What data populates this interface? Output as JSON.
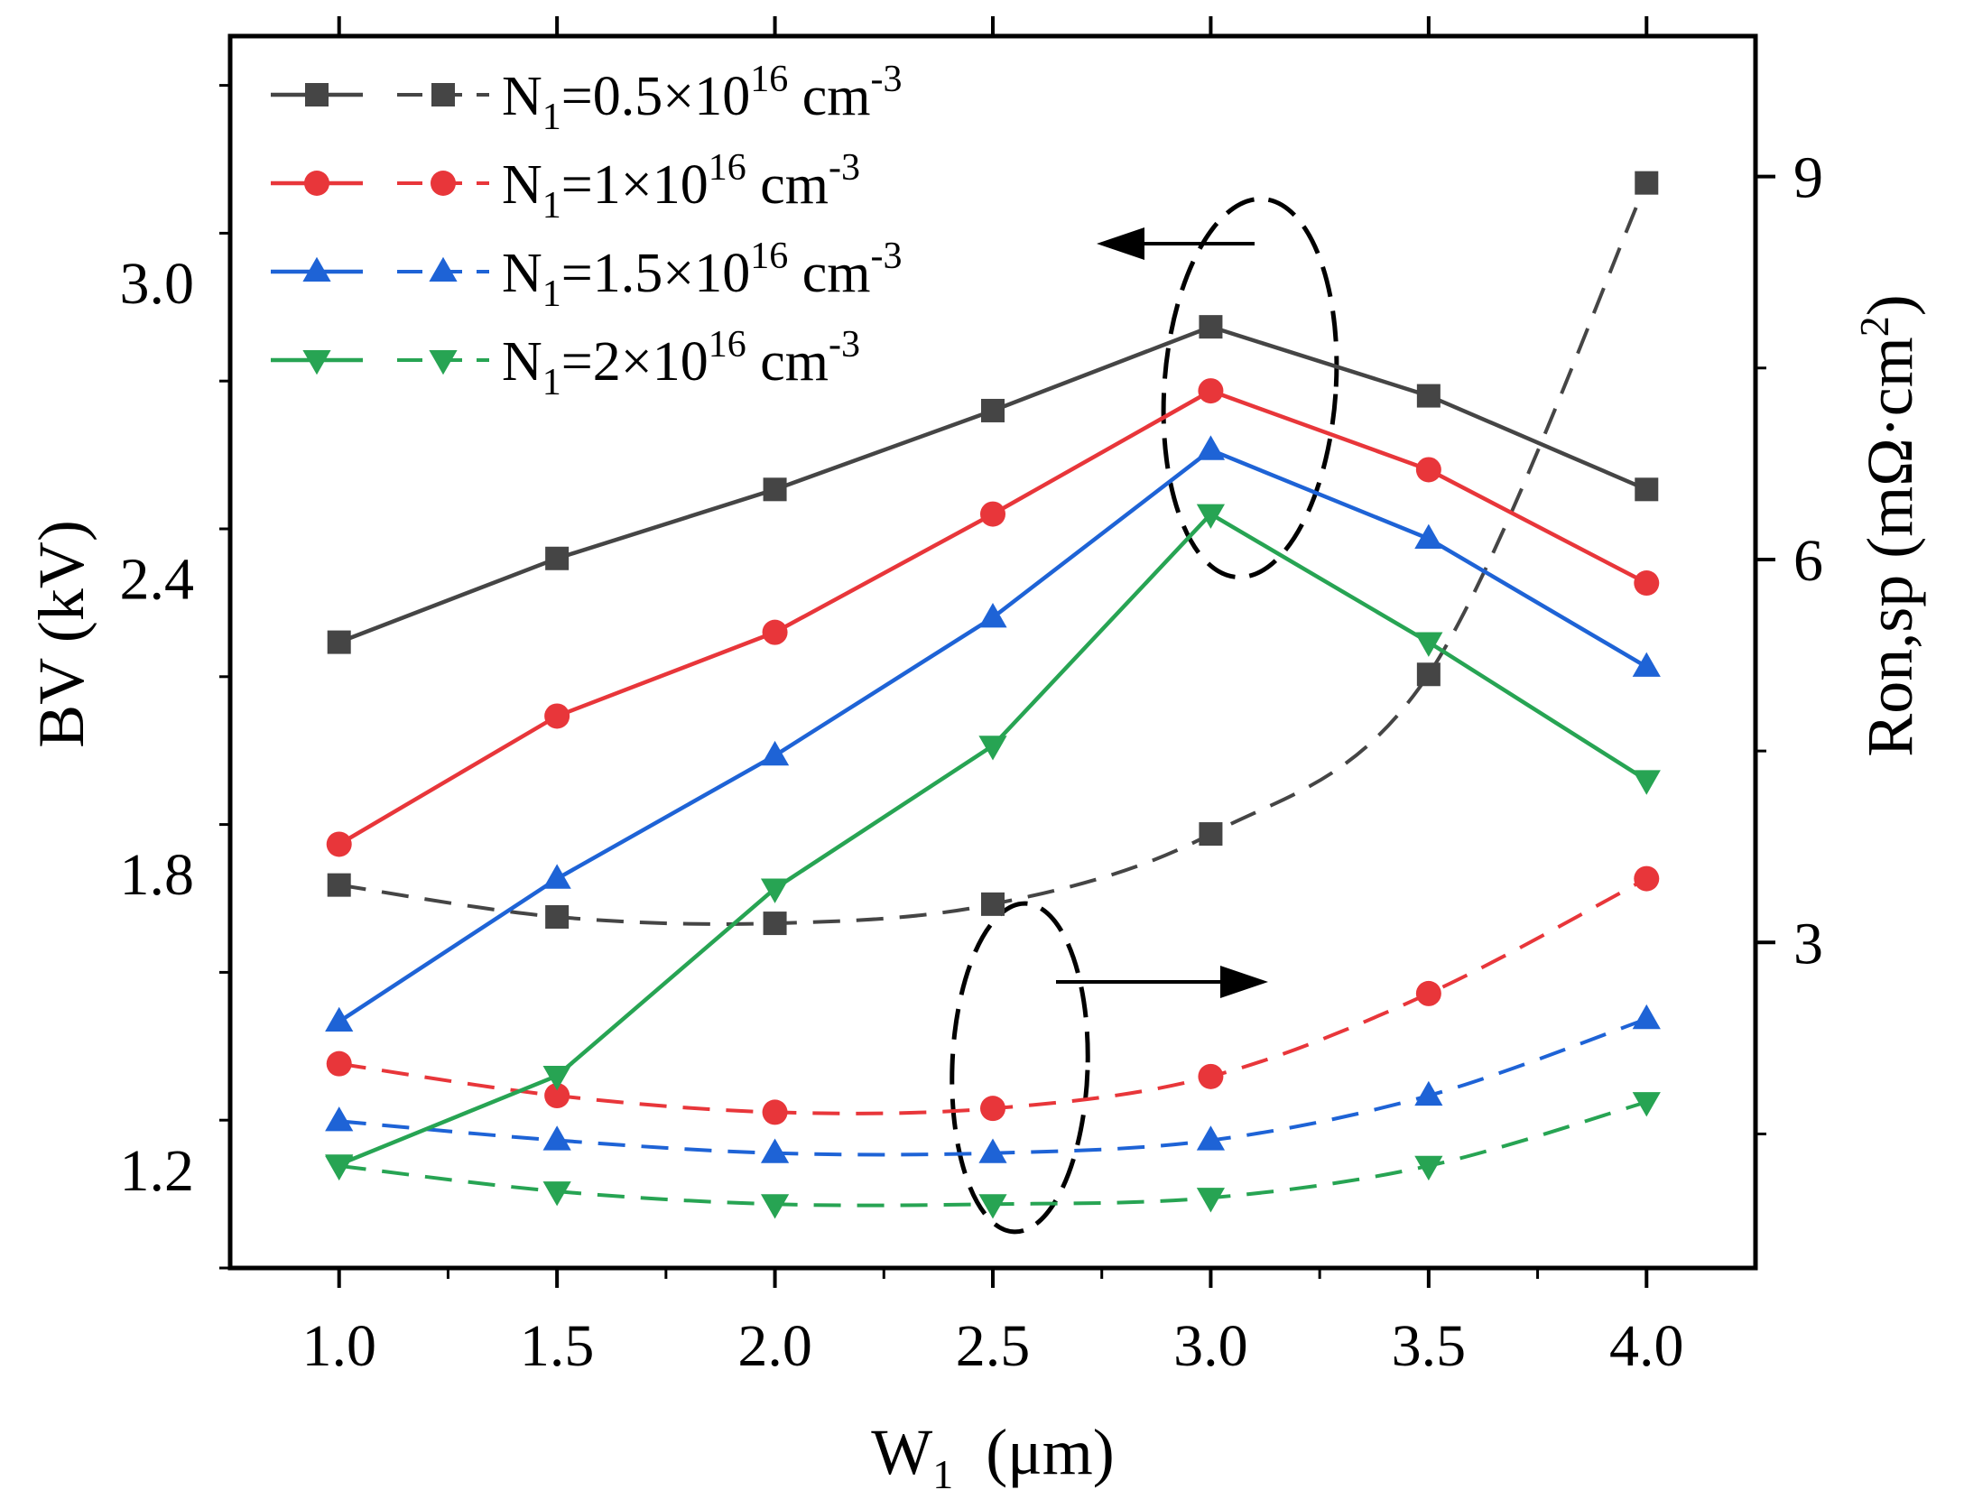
{
  "chart_data": {
    "type": "line",
    "x": [
      1.0,
      1.5,
      2.0,
      2.5,
      3.0,
      3.5,
      4.0
    ],
    "x_tick_labels": [
      "1.0",
      "1.5",
      "2.0",
      "2.5",
      "3.0",
      "3.5",
      "4.0"
    ],
    "xlim": [
      0.75,
      4.25
    ],
    "xlabel": {
      "main": "W",
      "sub": "1",
      "unit": "(μm)"
    },
    "y_left": {
      "label": "BV  (kV)",
      "lim": [
        1.0,
        3.5
      ],
      "ticks": [
        1.2,
        1.8,
        2.4,
        3.0
      ],
      "tick_labels": [
        "1.2",
        "1.8",
        "2.4",
        "3.0"
      ]
    },
    "y_right": {
      "label_main": "Ron,sp  (mΩ·cm",
      "label_sup": "2",
      "label_close": ")",
      "lim": [
        0.45,
        10.1
      ],
      "ticks": [
        3,
        6,
        9
      ],
      "tick_labels": [
        "3",
        "6",
        "9"
      ]
    },
    "series": [
      {
        "name": "N1=0.5×10^16 cm^-3",
        "legend": {
          "prefix": "N",
          "sub": "1",
          "coef": "=0.5×10",
          "exp": "16",
          "unit": " cm",
          "unit_exp": "-3"
        },
        "color": "#454545",
        "marker": "square",
        "bv": [
          2.27,
          2.44,
          2.58,
          2.74,
          2.91,
          2.77,
          2.58
        ],
        "ron": [
          3.45,
          3.2,
          3.15,
          3.3,
          3.85,
          5.1,
          8.95
        ]
      },
      {
        "name": "N1=1×10^16 cm^-3",
        "legend": {
          "prefix": "N",
          "sub": "1",
          "coef": "=1×10",
          "exp": "16",
          "unit": " cm",
          "unit_exp": "-3"
        },
        "color": "#e8363a",
        "marker": "circle",
        "bv": [
          1.86,
          2.12,
          2.29,
          2.53,
          2.78,
          2.62,
          2.39
        ],
        "ron": [
          2.05,
          1.8,
          1.67,
          1.7,
          1.95,
          2.6,
          3.5
        ]
      },
      {
        "name": "N1=1.5×10^16 cm^-3",
        "legend": {
          "prefix": "N",
          "sub": "1",
          "coef": "=1.5×10",
          "exp": "16",
          "unit": " cm",
          "unit_exp": "-3"
        },
        "color": "#1e63d6",
        "marker": "triangle-up",
        "bv": [
          1.5,
          1.79,
          2.04,
          2.32,
          2.66,
          2.48,
          2.22
        ],
        "ron": [
          1.6,
          1.45,
          1.35,
          1.35,
          1.45,
          1.8,
          2.4
        ]
      },
      {
        "name": "N1=2×10^16 cm^-3",
        "legend": {
          "prefix": "N",
          "sub": "1",
          "coef": "=2×10",
          "exp": "16",
          "unit": " cm",
          "unit_exp": "-3"
        },
        "color": "#27a453",
        "marker": "triangle-down",
        "bv": [
          1.21,
          1.39,
          1.77,
          2.06,
          2.53,
          2.27,
          1.99
        ],
        "ron": [
          1.25,
          1.05,
          0.95,
          0.95,
          1.0,
          1.25,
          1.75
        ]
      }
    ],
    "legend_position": "top-left",
    "line_styles": {
      "bv": "solid (left axis)",
      "ron": "dashed (right axis)"
    },
    "annotations": [
      {
        "type": "ellipse-dashed",
        "target": "BV peaks near W1=3.0",
        "arrow": "points left to BV axis"
      },
      {
        "type": "ellipse-dashed",
        "target": "Ron,sp curves near W1=2.5",
        "arrow": "points right to Ron,sp axis"
      }
    ]
  }
}
